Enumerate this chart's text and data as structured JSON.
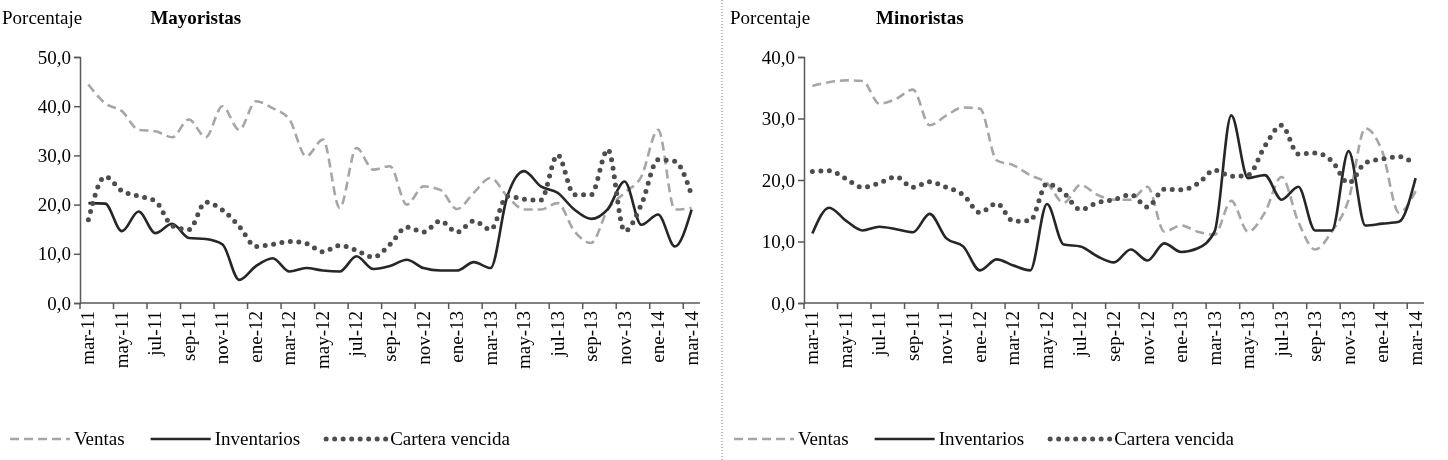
{
  "chart_data": [
    {
      "type": "line",
      "title": "Mayoristas",
      "ylabel": "Porcentaje",
      "categories": [
        "mar-11",
        null,
        "may-11",
        null,
        "jul-11",
        null,
        "sep-11",
        null,
        "nov-11",
        null,
        "ene-12",
        null,
        "mar-12",
        null,
        "may-12",
        null,
        "jul-12",
        null,
        "sep-12",
        null,
        "nov-12",
        null,
        "ene-13",
        null,
        "mar-13",
        null,
        "may-13",
        null,
        "jul-13",
        null,
        "sep-13",
        null,
        "nov-13",
        null,
        "ene-14",
        null,
        "mar-14"
      ],
      "ylim": [
        0,
        50
      ],
      "yticks": [
        {
          "value": 0,
          "label": "0,0"
        },
        {
          "value": 10,
          "label": "10,0"
        },
        {
          "value": 20,
          "label": "20,0"
        },
        {
          "value": 30,
          "label": "30,0"
        },
        {
          "value": 40,
          "label": "40,0"
        },
        {
          "value": 50,
          "label": "50,0"
        }
      ],
      "legend": "bottom",
      "series": [
        {
          "name": "Ventas",
          "color": "#a6a6a6",
          "line_style": "dashed",
          "values": [
            44.4,
            40.6,
            39.0,
            35.2,
            34.9,
            33.7,
            37.3,
            33.7,
            40.0,
            35.2,
            41.0,
            39.6,
            37.3,
            29.8,
            33.2,
            19.3,
            31.5,
            27.1,
            27.8,
            20.0,
            23.7,
            23.0,
            19.1,
            22.4,
            25.4,
            21.7,
            19.0,
            19.0,
            20.3,
            14.6,
            12.2,
            19.0,
            22.4,
            25.7,
            35.2,
            19.0,
            19.3
          ]
        },
        {
          "name": "Inventarios",
          "color": "#262626",
          "line_style": "solid",
          "values": [
            20.3,
            20.2,
            14.6,
            18.6,
            14.2,
            16.1,
            13.2,
            13.0,
            11.9,
            4.7,
            7.5,
            9.1,
            6.4,
            7.1,
            6.6,
            6.4,
            9.5,
            6.9,
            7.5,
            8.8,
            7.1,
            6.6,
            6.6,
            8.3,
            7.1,
            21.7,
            26.8,
            23.7,
            22.4,
            19.0,
            17.1,
            19.1,
            24.7,
            15.9,
            18.0,
            11.5,
            19.0
          ]
        },
        {
          "name": "Cartera vencida",
          "color": "#4d4d4d",
          "line_style": "dotted",
          "values": [
            16.9,
            25.7,
            22.8,
            21.7,
            20.7,
            15.7,
            14.9,
            20.5,
            18.9,
            15.6,
            11.5,
            11.9,
            12.5,
            12.1,
            10.4,
            11.7,
            10.7,
            9.3,
            11.9,
            15.4,
            14.4,
            16.7,
            14.4,
            16.7,
            14.9,
            21.7,
            21.1,
            20.9,
            30.1,
            22.0,
            22.0,
            31.2,
            14.6,
            20.0,
            29.1,
            28.8,
            21.9
          ]
        }
      ]
    },
    {
      "type": "line",
      "title": "Minoristas",
      "ylabel": "Porcentaje",
      "categories": [
        "mar-11",
        null,
        "may-11",
        null,
        "jul-11",
        null,
        "sep-11",
        null,
        "nov-11",
        null,
        "ene-12",
        null,
        "mar-12",
        null,
        "may-12",
        null,
        "jul-12",
        null,
        "sep-12",
        null,
        "nov-12",
        null,
        "ene-13",
        null,
        "mar-13",
        null,
        "may-13",
        null,
        "jul-13",
        null,
        "sep-13",
        null,
        "nov-13",
        null,
        "ene-14",
        null,
        "mar-14"
      ],
      "ylim": [
        0,
        40
      ],
      "yticks": [
        {
          "value": 0,
          "label": "0,0"
        },
        {
          "value": 10,
          "label": "10,0"
        },
        {
          "value": 20,
          "label": "20,0"
        },
        {
          "value": 30,
          "label": "30,0"
        },
        {
          "value": 40,
          "label": "40,0"
        }
      ],
      "legend": "bottom",
      "series": [
        {
          "name": "Ventas",
          "color": "#a6a6a6",
          "line_style": "dashed",
          "values": [
            35.3,
            35.9,
            36.2,
            36.1,
            32.4,
            33.2,
            34.7,
            28.9,
            30.5,
            31.8,
            31.6,
            23.2,
            22.4,
            20.8,
            19.5,
            16.3,
            19.2,
            17.6,
            16.8,
            16.8,
            18.9,
            11.6,
            12.6,
            11.6,
            11.1,
            16.6,
            11.6,
            14.7,
            20.5,
            13.2,
            8.7,
            11.6,
            16.8,
            28.4,
            24.7,
            14.7,
            18.2
          ]
        },
        {
          "name": "Inventarios",
          "color": "#262626",
          "line_style": "solid",
          "values": [
            11.3,
            15.5,
            13.4,
            11.8,
            12.4,
            12.0,
            11.5,
            14.5,
            10.5,
            9.2,
            5.3,
            7.1,
            6.1,
            5.3,
            16.1,
            9.5,
            9.2,
            7.6,
            6.6,
            8.7,
            6.9,
            9.7,
            8.3,
            8.9,
            11.6,
            30.5,
            20.3,
            20.8,
            16.8,
            18.9,
            11.8,
            11.8,
            24.7,
            12.6,
            12.9,
            13.2,
            20.3
          ]
        },
        {
          "name": "Cartera vencida",
          "color": "#4d4d4d",
          "line_style": "dotted",
          "values": [
            21.4,
            21.5,
            20.2,
            18.8,
            19.5,
            20.5,
            18.8,
            19.7,
            18.8,
            17.6,
            14.7,
            16.2,
            13.3,
            13.4,
            19.4,
            17.9,
            15.2,
            16.3,
            16.8,
            17.6,
            15.6,
            18.5,
            18.4,
            19.4,
            21.6,
            20.6,
            20.8,
            25.5,
            28.9,
            24.2,
            24.4,
            23.1,
            19.5,
            22.8,
            23.4,
            23.8,
            22.5
          ]
        }
      ]
    }
  ]
}
